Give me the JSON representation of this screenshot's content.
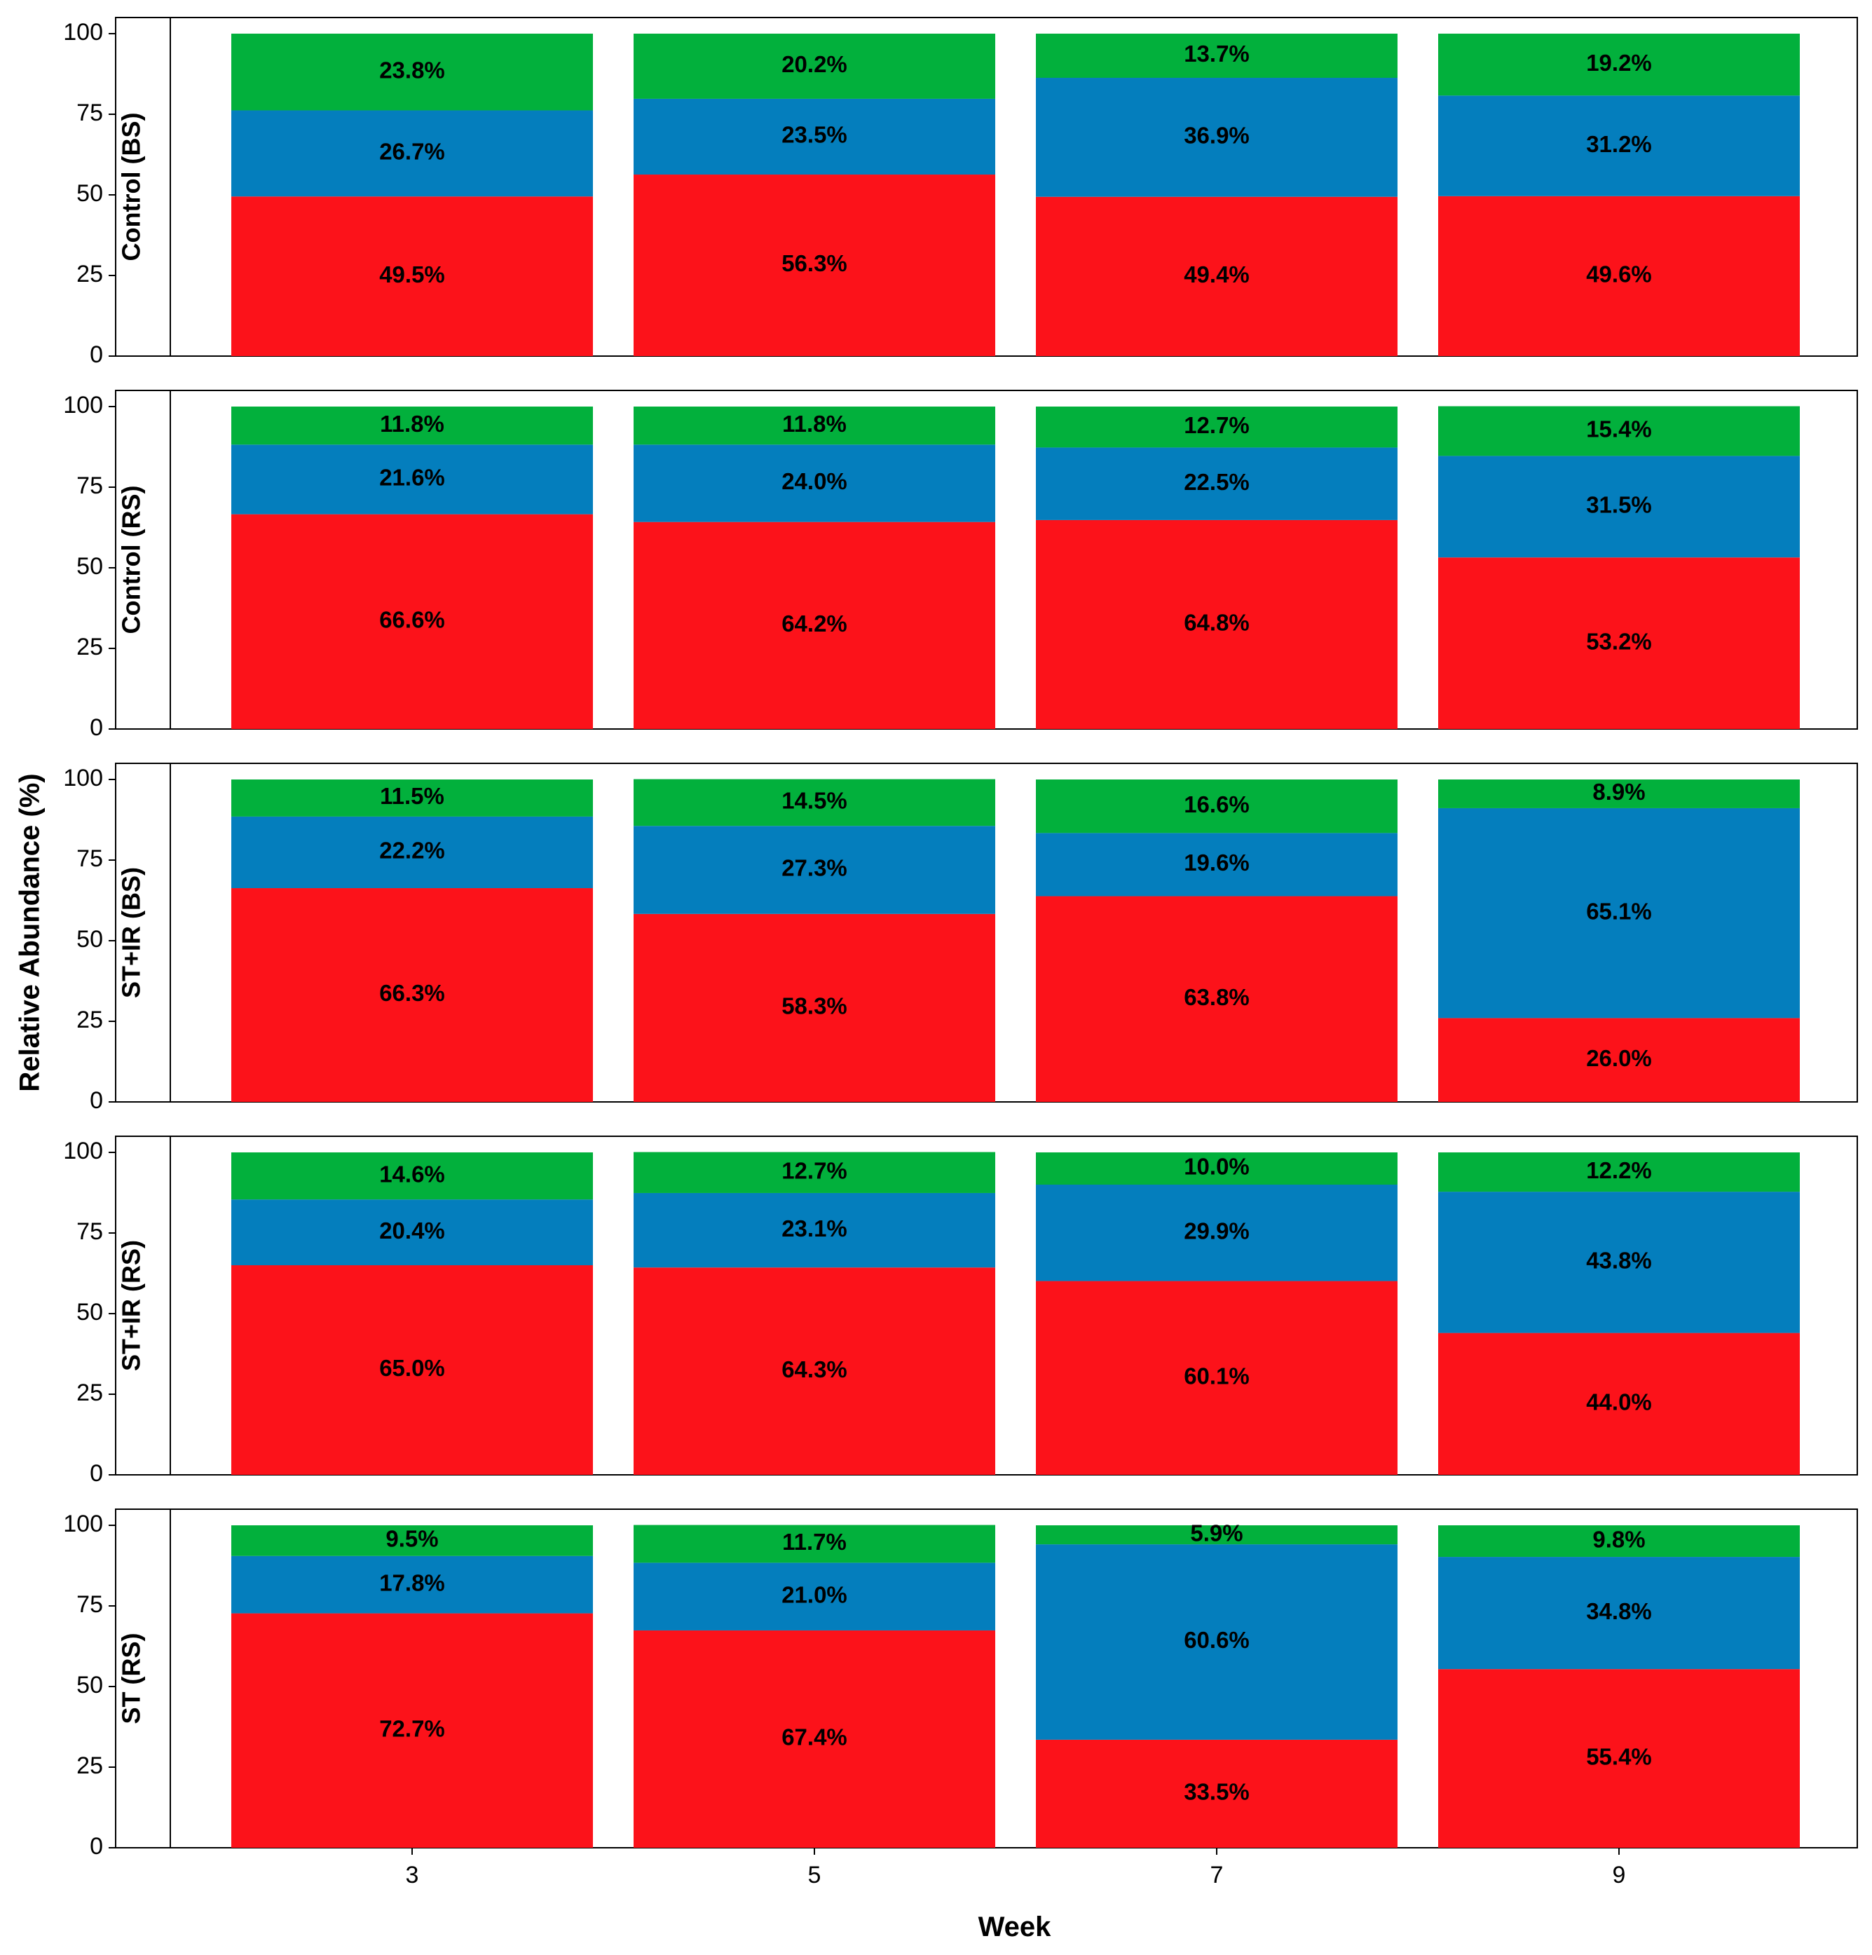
{
  "chart_data": {
    "type": "bar",
    "stacked": true,
    "xlabel": "Week",
    "ylabel": "Relative Abundance (%)",
    "categories": [
      "3",
      "5",
      "7",
      "9"
    ],
    "ylim": [
      0,
      100
    ],
    "yticks": [
      "0",
      "25",
      "50",
      "75",
      "100"
    ],
    "grid": false,
    "legend": "none",
    "colors": {
      "red": "#fc121a",
      "blue": "#047ebd",
      "green": "#02b03c"
    },
    "panels": [
      {
        "label": "Control (BS)",
        "series": [
          {
            "color": "#fc121a",
            "values": [
              49.5,
              56.3,
              49.4,
              49.6
            ],
            "labels": [
              "49.5%",
              "56.3%",
              "49.4%",
              "49.6%"
            ]
          },
          {
            "color": "#047ebd",
            "values": [
              26.7,
              23.5,
              36.9,
              31.2
            ],
            "labels": [
              "26.7%",
              "23.5%",
              "36.9%",
              "31.2%"
            ]
          },
          {
            "color": "#02b03c",
            "values": [
              23.8,
              20.2,
              13.7,
              19.2
            ],
            "labels": [
              "23.8%",
              "20.2%",
              "13.7%",
              "19.2%"
            ]
          }
        ]
      },
      {
        "label": "Control (RS)",
        "series": [
          {
            "color": "#fc121a",
            "values": [
              66.6,
              64.2,
              64.8,
              53.2
            ],
            "labels": [
              "66.6%",
              "64.2%",
              "64.8%",
              "53.2%"
            ]
          },
          {
            "color": "#047ebd",
            "values": [
              21.6,
              24.0,
              22.5,
              31.5
            ],
            "labels": [
              "21.6%",
              "24.0%",
              "22.5%",
              "31.5%"
            ]
          },
          {
            "color": "#02b03c",
            "values": [
              11.8,
              11.8,
              12.7,
              15.4
            ],
            "labels": [
              "11.8%",
              "11.8%",
              "12.7%",
              "15.4%"
            ]
          }
        ]
      },
      {
        "label": "ST+IR (BS)",
        "series": [
          {
            "color": "#fc121a",
            "values": [
              66.3,
              58.3,
              63.8,
              26.0
            ],
            "labels": [
              "66.3%",
              "58.3%",
              "63.8%",
              "26.0%"
            ]
          },
          {
            "color": "#047ebd",
            "values": [
              22.2,
              27.3,
              19.6,
              65.1
            ],
            "labels": [
              "22.2%",
              "27.3%",
              "19.6%",
              "65.1%"
            ]
          },
          {
            "color": "#02b03c",
            "values": [
              11.5,
              14.5,
              16.6,
              8.9
            ],
            "labels": [
              "11.5%",
              "14.5%",
              "16.6%",
              "8.9%"
            ]
          }
        ]
      },
      {
        "label": "ST+IR (RS)",
        "series": [
          {
            "color": "#fc121a",
            "values": [
              65.0,
              64.3,
              60.1,
              44.0
            ],
            "labels": [
              "65.0%",
              "64.3%",
              "60.1%",
              "44.0%"
            ]
          },
          {
            "color": "#047ebd",
            "values": [
              20.4,
              23.1,
              29.9,
              43.8
            ],
            "labels": [
              "20.4%",
              "23.1%",
              "29.9%",
              "43.8%"
            ]
          },
          {
            "color": "#02b03c",
            "values": [
              14.6,
              12.7,
              10.0,
              12.2
            ],
            "labels": [
              "14.6%",
              "12.7%",
              "10.0%",
              "12.2%"
            ]
          }
        ]
      },
      {
        "label": "ST (RS)",
        "series": [
          {
            "color": "#fc121a",
            "values": [
              72.7,
              67.4,
              33.5,
              55.4
            ],
            "labels": [
              "72.7%",
              "67.4%",
              "33.5%",
              "55.4%"
            ]
          },
          {
            "color": "#047ebd",
            "values": [
              17.8,
              21.0,
              60.6,
              34.8
            ],
            "labels": [
              "17.8%",
              "21.0%",
              "60.6%",
              "34.8%"
            ]
          },
          {
            "color": "#02b03c",
            "values": [
              9.5,
              11.7,
              5.9,
              9.8
            ],
            "labels": [
              "9.5%",
              "11.7%",
              "5.9%",
              "9.8%"
            ]
          }
        ]
      }
    ]
  }
}
